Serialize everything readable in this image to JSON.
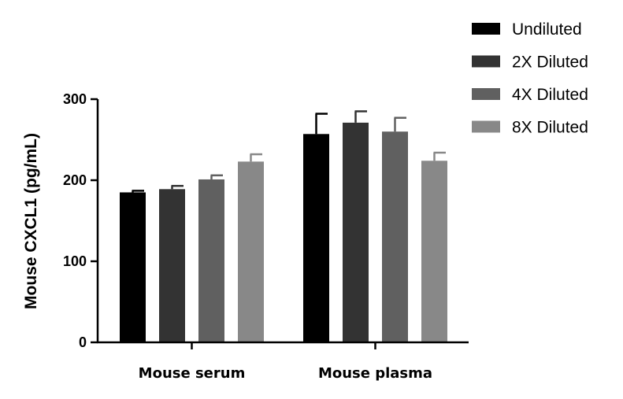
{
  "chart_data": {
    "type": "bar",
    "title": "",
    "xlabel": "",
    "ylabel": "Mouse CXCL1 (pg/mL)",
    "ylim": [
      0,
      300
    ],
    "yticks": [
      0,
      100,
      200,
      300
    ],
    "categories": [
      "Mouse serum",
      "Mouse plasma"
    ],
    "series": [
      {
        "name": "Undiluted",
        "color": "#000000",
        "values": [
          185,
          257
        ],
        "errors": [
          2,
          25
        ]
      },
      {
        "name": "2X Diluted",
        "color": "#333333",
        "values": [
          189,
          271
        ],
        "errors": [
          4,
          14
        ]
      },
      {
        "name": "4X Diluted",
        "color": "#606060",
        "values": [
          201,
          260
        ],
        "errors": [
          5,
          17
        ]
      },
      {
        "name": "8X Diluted",
        "color": "#888888",
        "values": [
          223,
          224
        ],
        "errors": [
          9,
          10
        ]
      }
    ],
    "legend": "top-right",
    "grid": false
  }
}
